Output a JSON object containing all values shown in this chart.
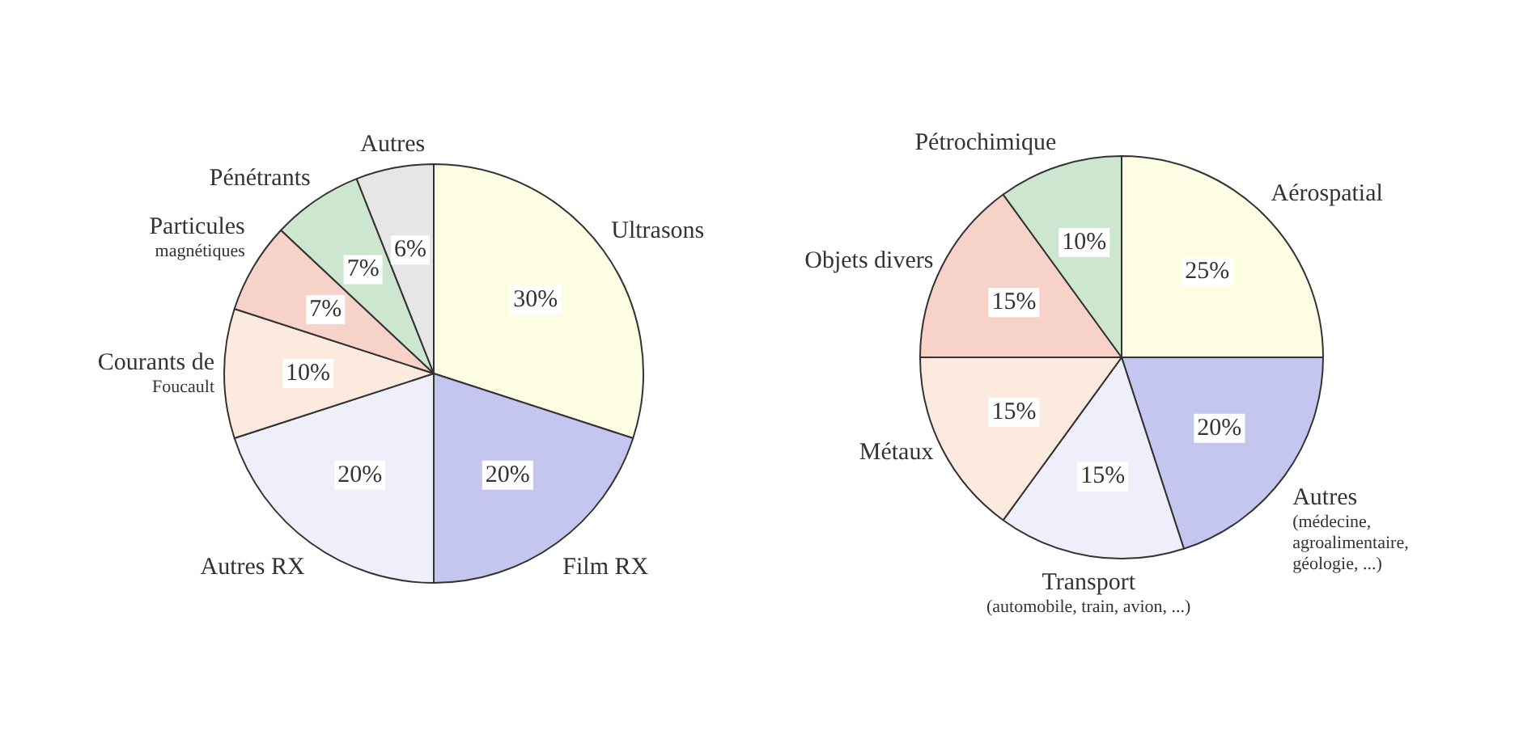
{
  "chart_data": [
    {
      "type": "pie",
      "categories": [
        "Ultrasons",
        "Film RX",
        "Autres RX",
        "Courants de\nFoucault",
        "Particules\nmagnétiques",
        "Pénétrants",
        "Autres"
      ],
      "values": [
        30,
        20,
        20,
        10,
        7,
        7,
        6
      ],
      "value_labels": [
        "30%",
        "20%",
        "20%",
        "10%",
        "7%",
        "7%",
        "6%"
      ],
      "colors": [
        "#fdfde3",
        "#c5c6f0",
        "#eeeffb",
        "#fbeadd",
        "#f7d2c8",
        "#cde6cf",
        "#e6e6e6"
      ]
    },
    {
      "type": "pie",
      "categories": [
        "Aérospatial",
        "Autres\n(médecine,\nagroalimentaire,\ngéologie, ...)",
        "Transport\n(automobile, train, avion, ...)",
        "Métaux",
        "Objets divers",
        "Pétrochimique"
      ],
      "values": [
        25,
        20,
        15,
        15,
        15,
        10
      ],
      "value_labels": [
        "25%",
        "20%",
        "15%",
        "15%",
        "15%",
        "10%"
      ],
      "colors": [
        "#fdfde3",
        "#c5c6f0",
        "#eeeffb",
        "#fbeadd",
        "#f7d2c8",
        "#cde6cf"
      ]
    }
  ]
}
